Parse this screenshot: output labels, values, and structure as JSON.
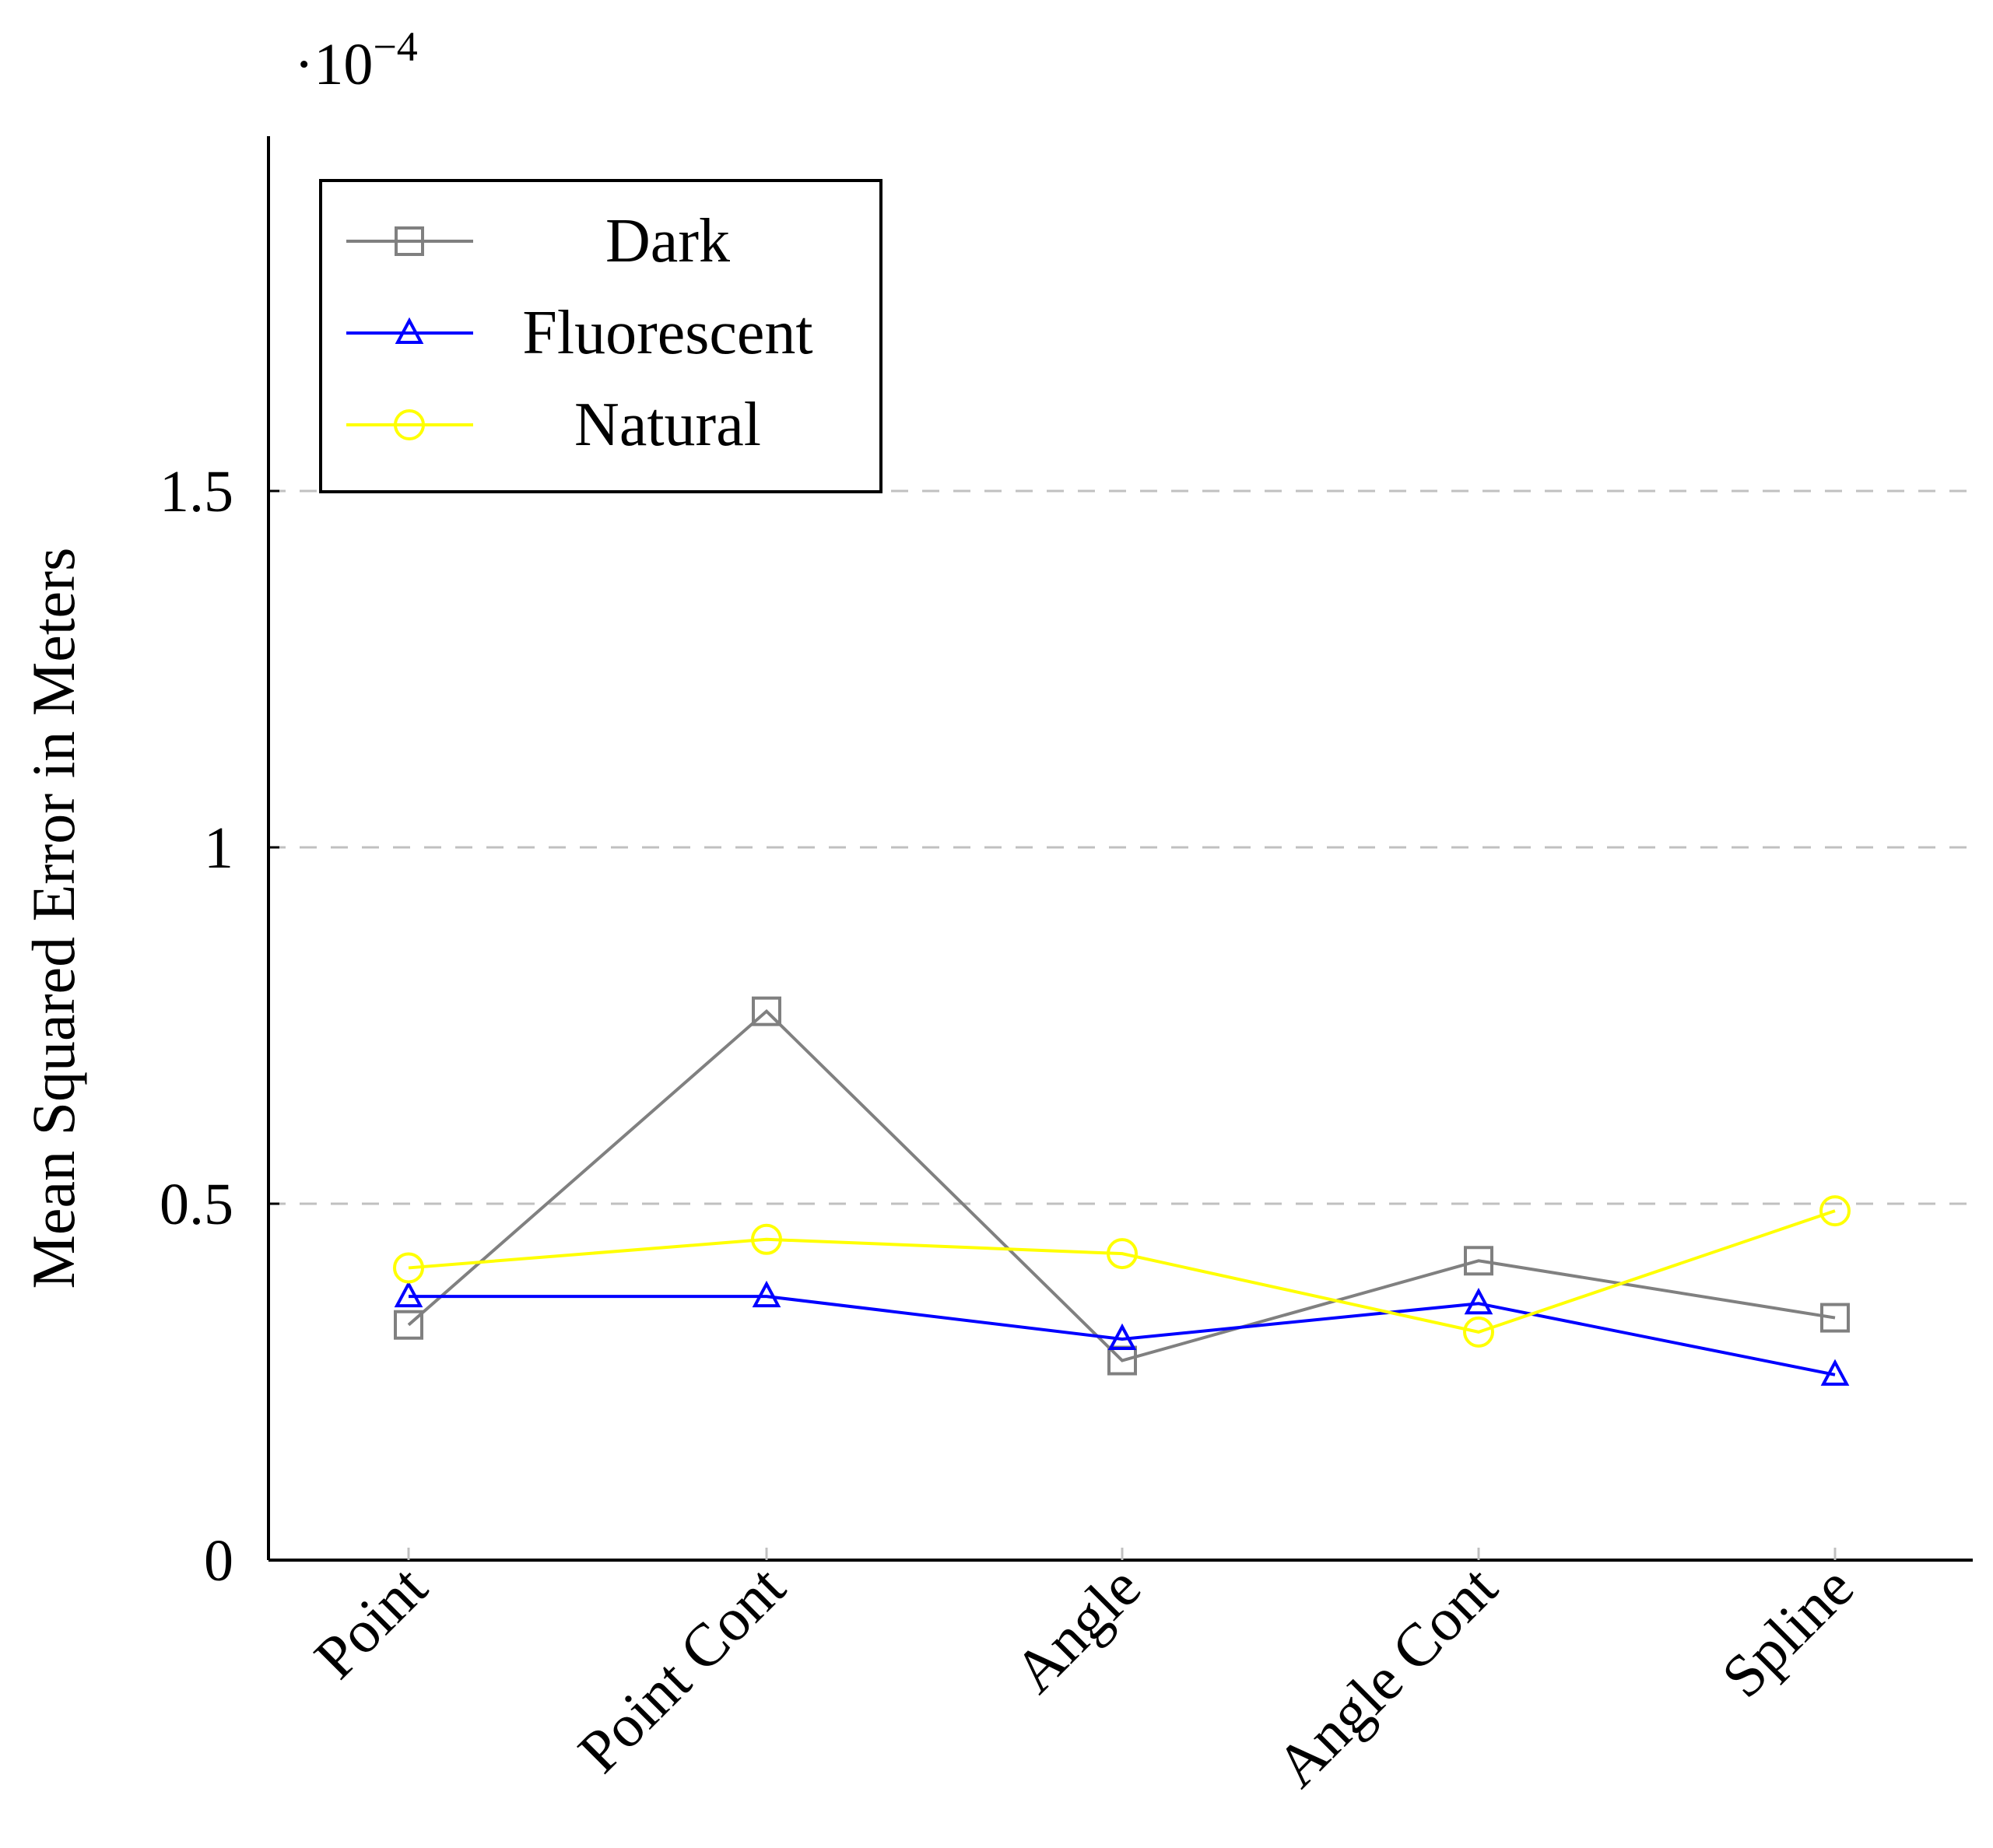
{
  "chart_data": {
    "type": "line",
    "title": "",
    "xlabel": "",
    "ylabel": "Mean Squared Error in Meters",
    "y_scale_base": "10",
    "y_scale_exp": "−4",
    "categories": [
      "Point",
      "Point Cont",
      "Angle",
      "Angle Cont",
      "Spline"
    ],
    "ylim": [
      0,
      2.0
    ],
    "yticks": [
      {
        "value": 0,
        "label": "0"
      },
      {
        "value": 0.5,
        "label": "0.5"
      },
      {
        "value": 1,
        "label": "1"
      },
      {
        "value": 1.5,
        "label": "1.5"
      }
    ],
    "grid": "horizontal dashed at 0.5, 1, 1.5",
    "legend_position": "top-left",
    "series": [
      {
        "name": "Dark",
        "marker": "square",
        "color": "#808080",
        "values": [
          0.33,
          0.77,
          0.28,
          0.42,
          0.34
        ]
      },
      {
        "name": "Fluorescent",
        "marker": "triangle",
        "color": "#0000ff",
        "values": [
          0.37,
          0.37,
          0.31,
          0.36,
          0.26
        ]
      },
      {
        "name": "Natural",
        "marker": "circle",
        "color": "#ffff00",
        "values": [
          0.41,
          0.45,
          0.43,
          0.32,
          0.49
        ]
      }
    ]
  }
}
